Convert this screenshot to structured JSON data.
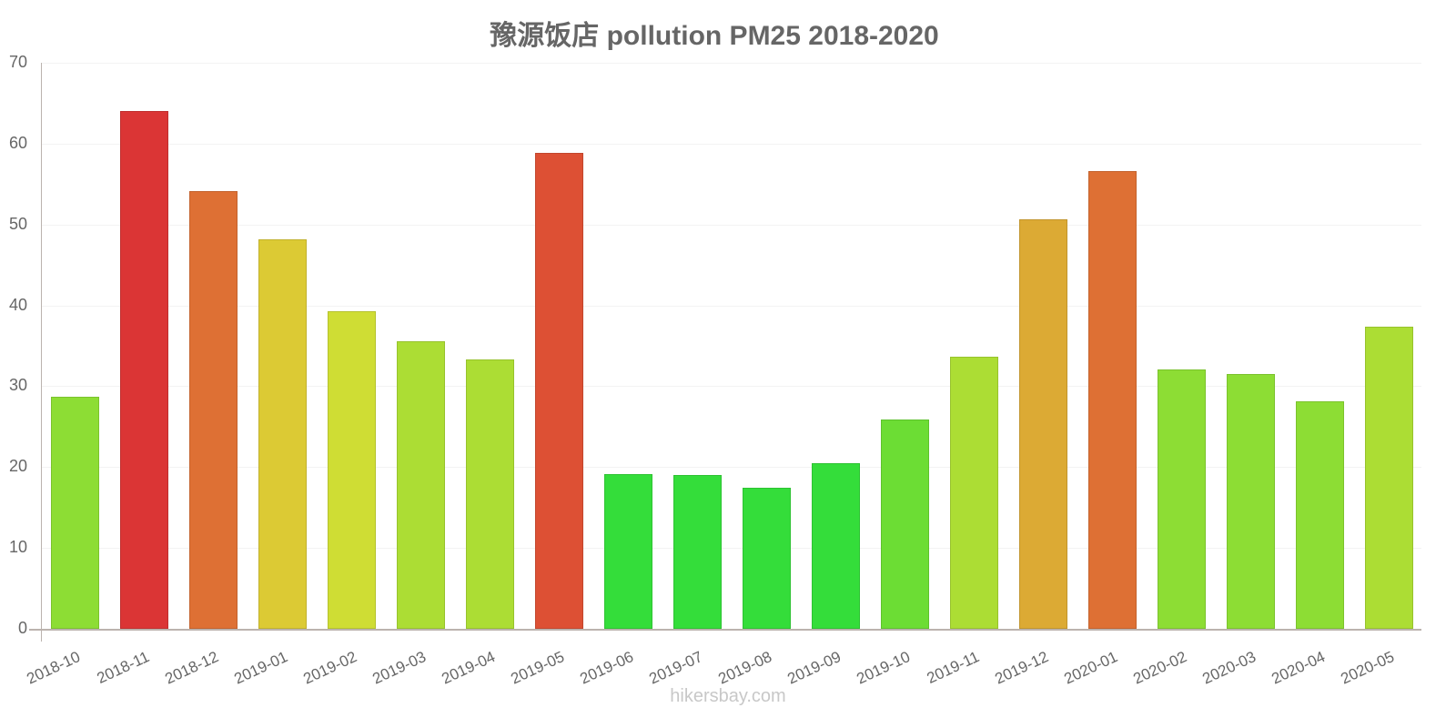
{
  "title": "豫源饭店 pollution PM25 2018-2020",
  "watermark": "hikersbay.com",
  "chart_data": {
    "type": "bar",
    "title": "豫源饭店 pollution PM25 2018-2020",
    "xlabel": "",
    "ylabel": "",
    "ylim": [
      0,
      70
    ],
    "yticks": [
      0,
      10,
      20,
      30,
      40,
      50,
      60,
      70
    ],
    "grid": true,
    "legend": "none",
    "categories": [
      "2018-10",
      "2018-11",
      "2018-12",
      "2019-01",
      "2019-02",
      "2019-03",
      "2019-04",
      "2019-05",
      "2019-06",
      "2019-07",
      "2019-08",
      "2019-09",
      "2019-10",
      "2019-11",
      "2019-12",
      "2020-01",
      "2020-02",
      "2020-03",
      "2020-04",
      "2020-05"
    ],
    "values": [
      28.7,
      64.0,
      54.1,
      48.2,
      39.3,
      35.6,
      33.3,
      58.9,
      19.1,
      19.0,
      17.4,
      20.5,
      25.9,
      33.6,
      50.6,
      56.6,
      32.1,
      31.5,
      28.1,
      37.4
    ],
    "colors": [
      "#8ddd34",
      "#db3535",
      "#de7034",
      "#dcca34",
      "#cfdd34",
      "#acdd34",
      "#acdd34",
      "#dd5034",
      "#34dd3a",
      "#34dd3a",
      "#34dd3a",
      "#34dd3a",
      "#6cdd34",
      "#acdd34",
      "#dcaa34",
      "#de7034",
      "#8ddd34",
      "#8ddd34",
      "#8ddd34",
      "#acdd34"
    ]
  }
}
